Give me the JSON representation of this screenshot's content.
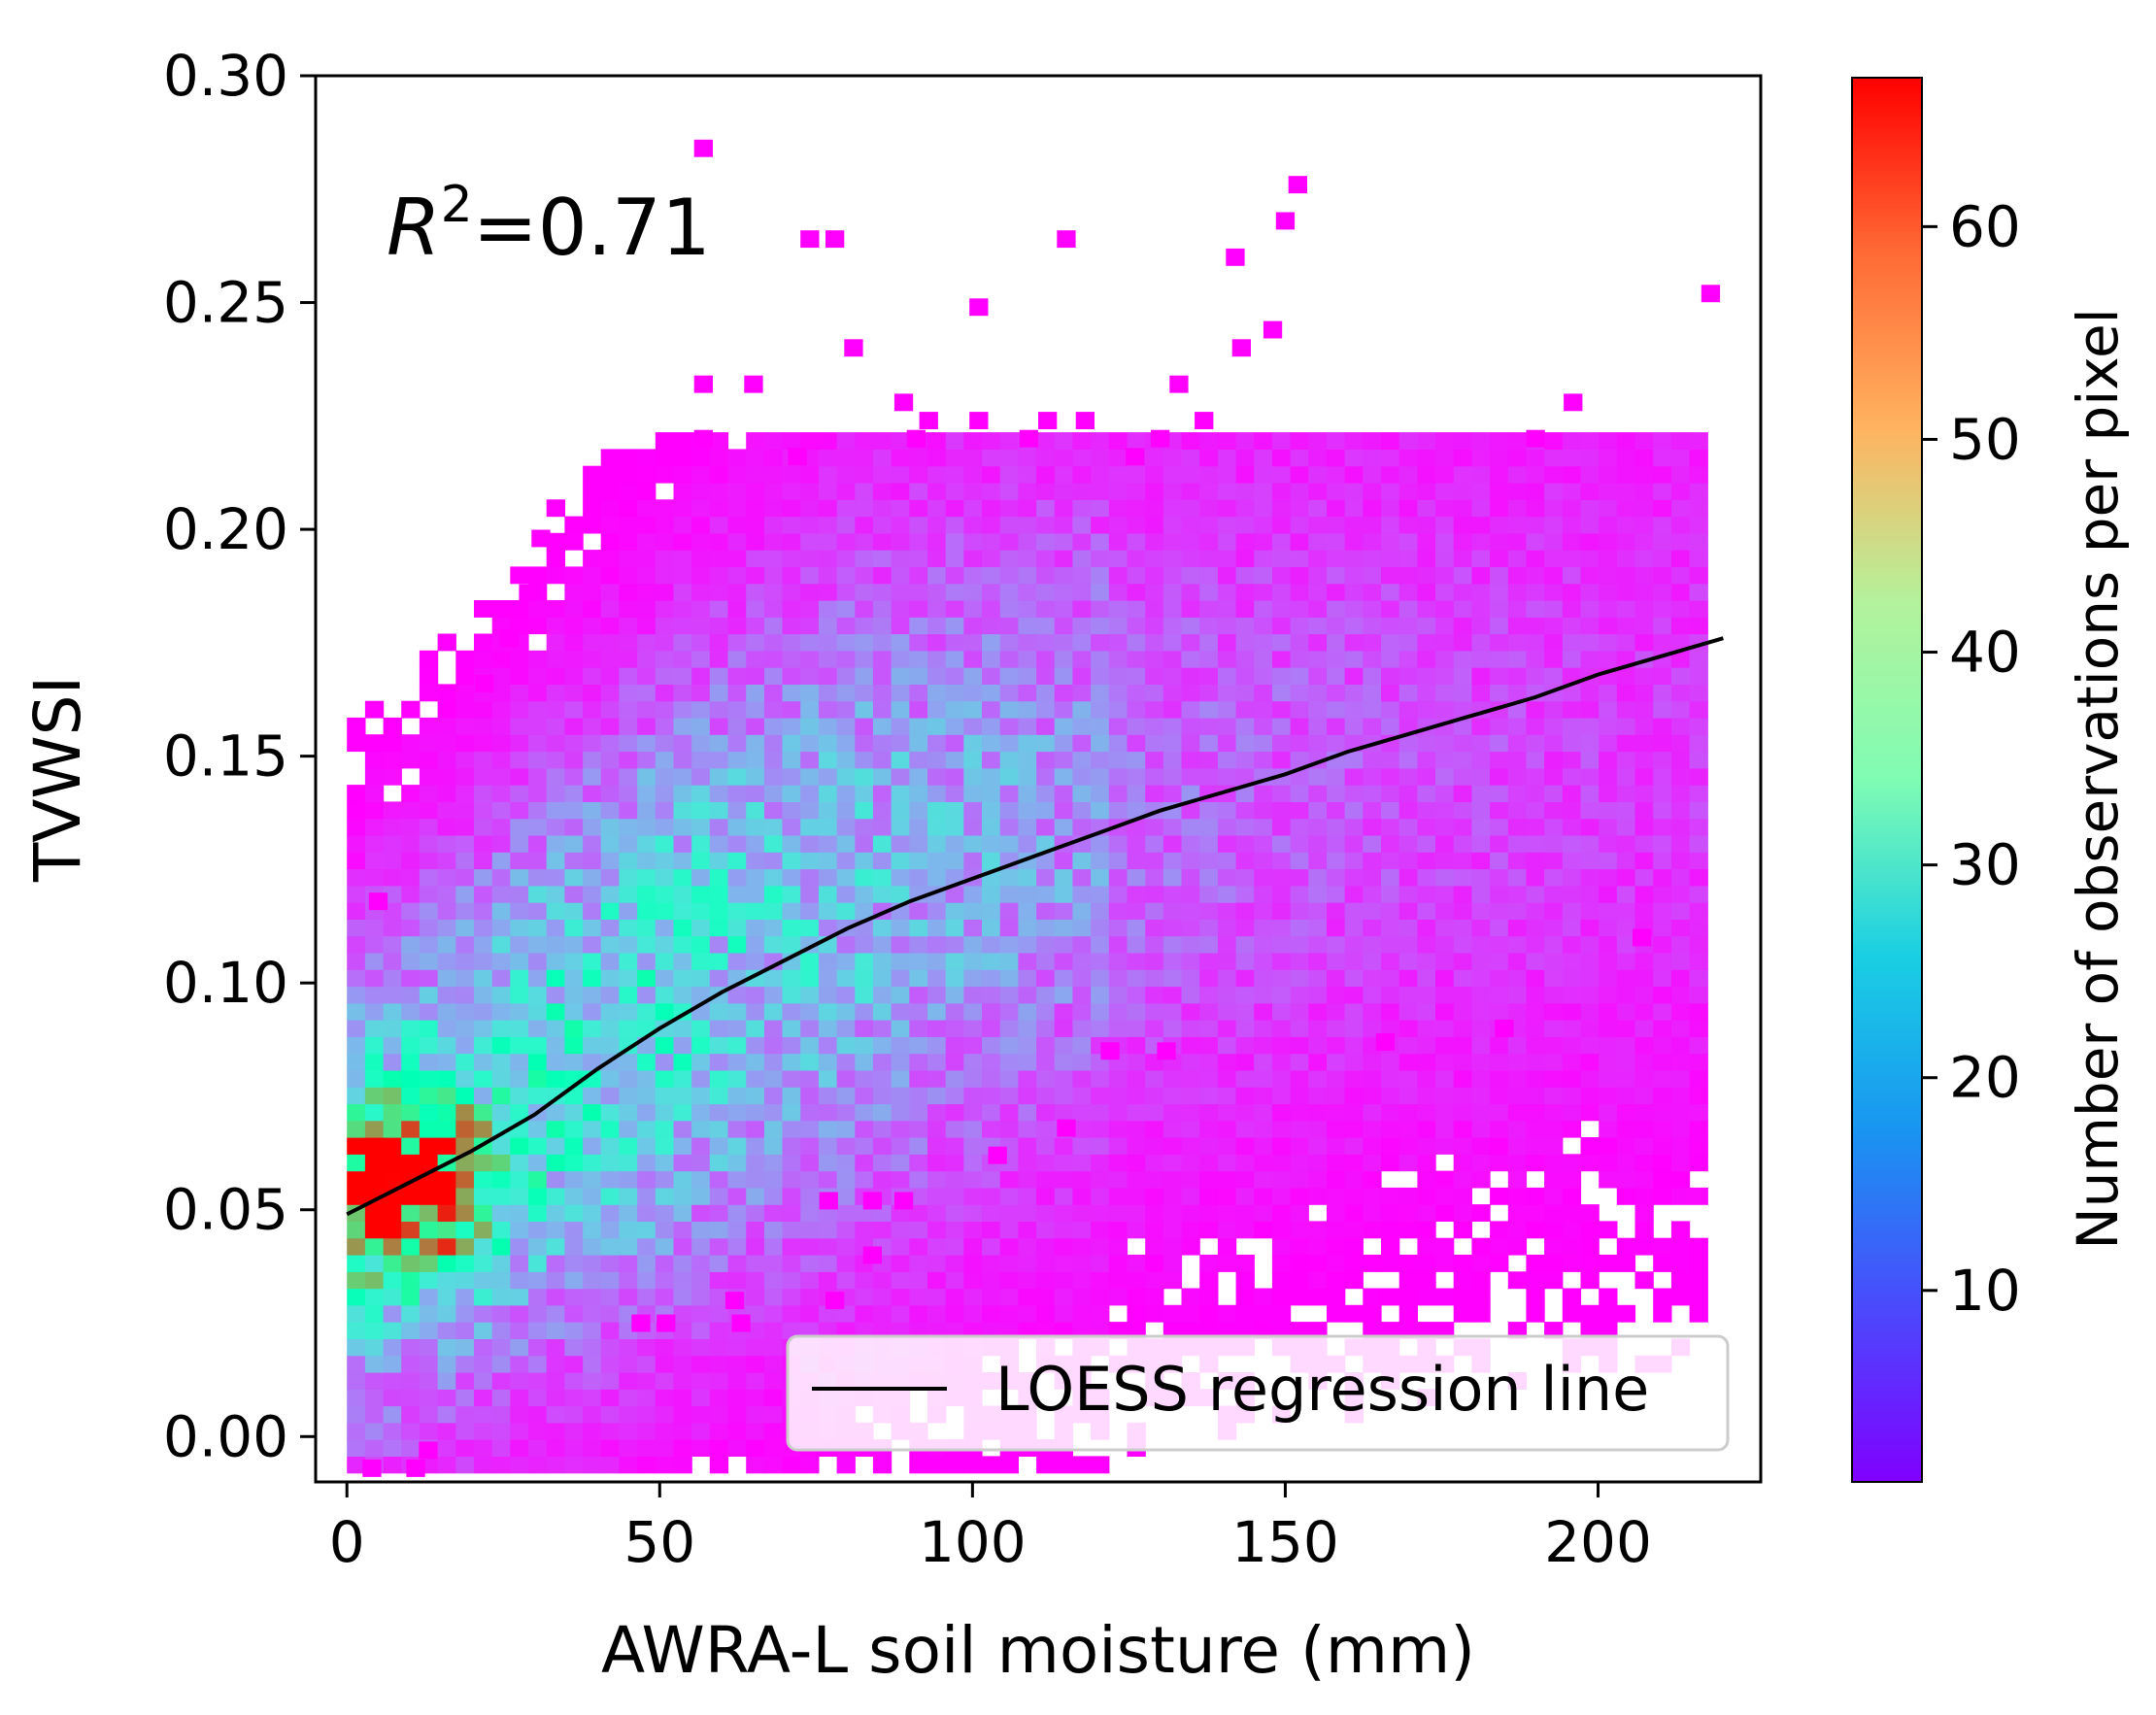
{
  "chart_data": {
    "type": "heatmap",
    "subtype": "2d-histogram-with-regression-line",
    "xlabel": "AWRA-L soil moisture (mm)",
    "ylabel": "TVWSI",
    "xlim": [
      -5,
      226
    ],
    "ylim": [
      -0.01,
      0.3
    ],
    "xticks": [
      0,
      50,
      100,
      150,
      200
    ],
    "xtick_labels": [
      "0",
      "50",
      "100",
      "150",
      "200"
    ],
    "yticks": [
      0.0,
      0.05,
      0.1,
      0.15,
      0.2,
      0.25,
      0.3
    ],
    "ytick_labels": [
      "0.00",
      "0.05",
      "0.10",
      "0.15",
      "0.20",
      "0.25",
      "0.30"
    ],
    "grid": false,
    "annotation": {
      "base": "R",
      "exponent": "2",
      "rest": "=0.71"
    },
    "legend": {
      "position": "lower-right",
      "entries": [
        "LOESS regression line"
      ]
    },
    "colorbar": {
      "label": "Number of observations per pixel",
      "colormap": "rainbow",
      "range": [
        1,
        67
      ],
      "ticks": [
        10,
        20,
        30,
        40,
        50,
        60
      ],
      "tick_labels": [
        "10",
        "20",
        "30",
        "40",
        "50",
        "60"
      ]
    },
    "bin_size": {
      "x": 2.9,
      "y": 0.0037
    },
    "density_model": {
      "mean_curve": {
        "x": [
          0,
          30,
          60,
          90,
          120,
          150,
          180,
          210
        ],
        "y": [
          0.05,
          0.078,
          0.104,
          0.124,
          0.137,
          0.145,
          0.15,
          0.152
        ]
      },
      "dense_cluster": {
        "x": 8,
        "y": 0.055,
        "peak": 60
      },
      "typical_spread_y": 0.035
    },
    "series": [
      {
        "name": "LOESS regression line",
        "type": "line",
        "color": "#000000",
        "x": [
          0,
          10,
          20,
          30,
          40,
          50,
          60,
          70,
          80,
          90,
          100,
          110,
          120,
          130,
          140,
          150,
          160,
          170,
          180,
          190,
          200,
          210,
          220
        ],
        "y": [
          0.049,
          0.056,
          0.063,
          0.071,
          0.081,
          0.09,
          0.098,
          0.105,
          0.112,
          0.118,
          0.123,
          0.128,
          0.133,
          0.138,
          0.142,
          0.146,
          0.151,
          0.155,
          0.159,
          0.163,
          0.168,
          0.172,
          0.176
        ]
      }
    ],
    "outliers": [
      {
        "x": 57,
        "y": 0.284
      },
      {
        "x": 74,
        "y": 0.264
      },
      {
        "x": 78,
        "y": 0.264
      },
      {
        "x": 115,
        "y": 0.264
      },
      {
        "x": 142,
        "y": 0.26
      },
      {
        "x": 150,
        "y": 0.268
      },
      {
        "x": 152,
        "y": 0.276
      },
      {
        "x": 218,
        "y": 0.252
      },
      {
        "x": 101,
        "y": 0.249
      },
      {
        "x": 81,
        "y": 0.24
      },
      {
        "x": 143,
        "y": 0.24
      },
      {
        "x": 148,
        "y": 0.244
      },
      {
        "x": 57,
        "y": 0.232
      },
      {
        "x": 65,
        "y": 0.232
      },
      {
        "x": 133,
        "y": 0.232
      },
      {
        "x": 89,
        "y": 0.228
      },
      {
        "x": 93,
        "y": 0.224
      },
      {
        "x": 101,
        "y": 0.224
      },
      {
        "x": 112,
        "y": 0.224
      },
      {
        "x": 118,
        "y": 0.224
      },
      {
        "x": 137,
        "y": 0.224
      },
      {
        "x": 196,
        "y": 0.228
      },
      {
        "x": 57,
        "y": 0.22
      },
      {
        "x": 91,
        "y": 0.22
      },
      {
        "x": 109,
        "y": 0.22
      },
      {
        "x": 130,
        "y": 0.22
      },
      {
        "x": 190,
        "y": 0.22
      },
      {
        "x": 72,
        "y": 0.216
      },
      {
        "x": 126,
        "y": 0.216
      },
      {
        "x": 31,
        "y": 0.198
      },
      {
        "x": 29,
        "y": 0.186
      },
      {
        "x": 26,
        "y": 0.176
      },
      {
        "x": 22,
        "y": 0.166
      },
      {
        "x": 5,
        "y": 0.118
      },
      {
        "x": 207,
        "y": 0.11
      },
      {
        "x": 185,
        "y": 0.09
      },
      {
        "x": 166,
        "y": 0.087
      },
      {
        "x": 131,
        "y": 0.085
      },
      {
        "x": 122,
        "y": 0.085
      },
      {
        "x": 115,
        "y": 0.068
      },
      {
        "x": 104,
        "y": 0.062
      },
      {
        "x": 89,
        "y": 0.052
      },
      {
        "x": 84,
        "y": 0.052
      },
      {
        "x": 77,
        "y": 0.052
      },
      {
        "x": 84,
        "y": 0.04
      },
      {
        "x": 62,
        "y": 0.03
      },
      {
        "x": 78,
        "y": 0.03
      },
      {
        "x": 51,
        "y": 0.025
      },
      {
        "x": 63,
        "y": 0.025
      },
      {
        "x": 47,
        "y": 0.025
      },
      {
        "x": 13,
        "y": -0.003
      },
      {
        "x": 4,
        "y": -0.007
      },
      {
        "x": 11,
        "y": -0.007
      }
    ]
  }
}
